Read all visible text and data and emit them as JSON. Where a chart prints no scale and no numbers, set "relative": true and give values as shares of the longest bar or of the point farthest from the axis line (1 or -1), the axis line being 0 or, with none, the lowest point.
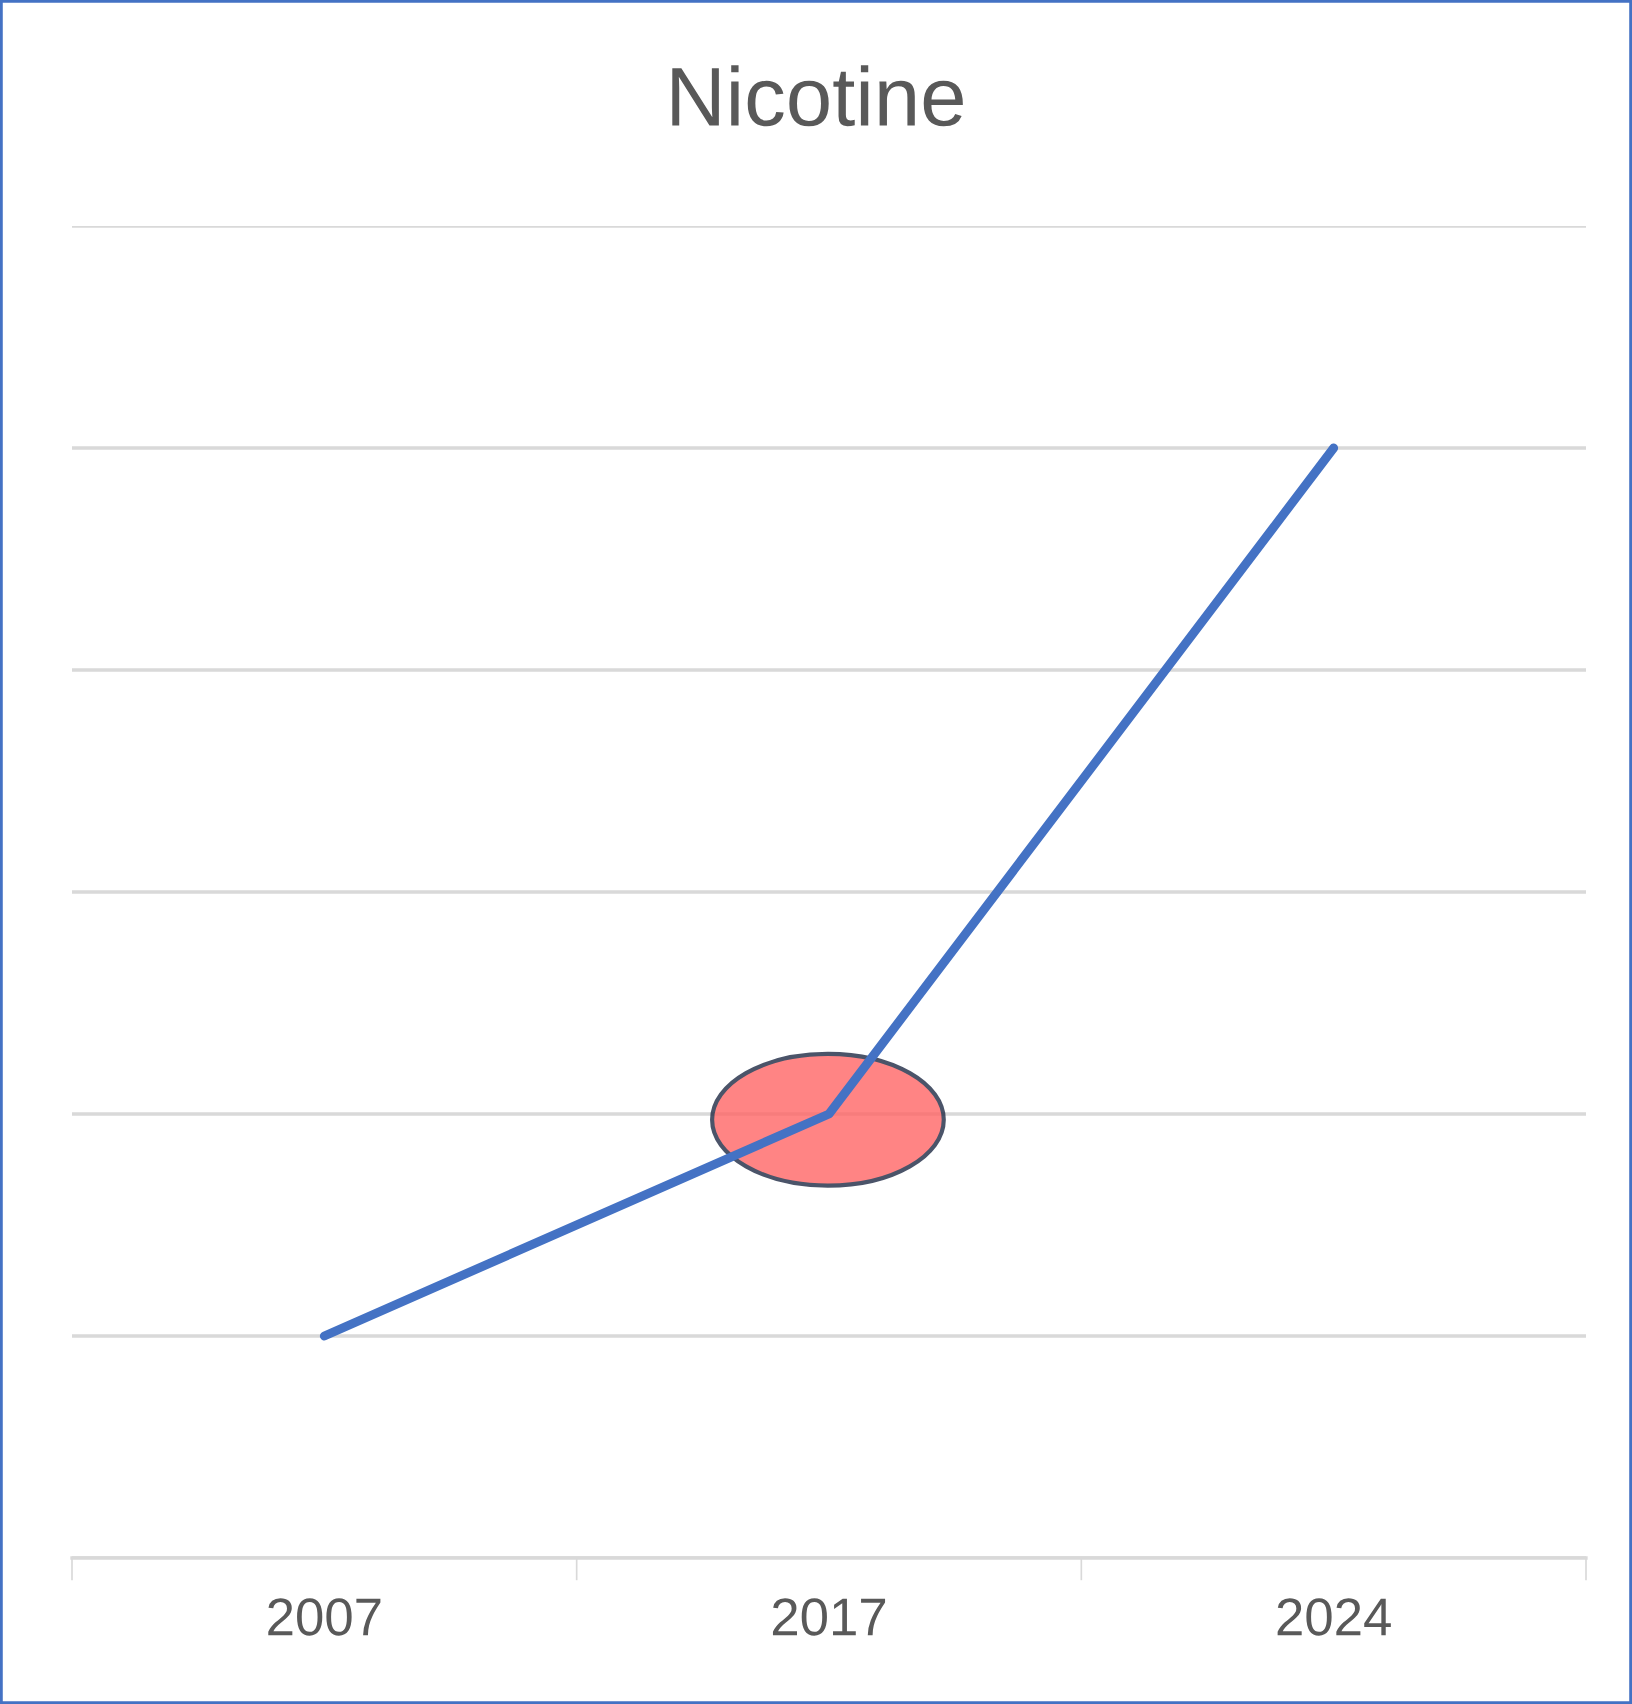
{
  "chart_data": {
    "type": "line",
    "title": "Nicotine",
    "relative": true,
    "categories": [
      "2007",
      "2017",
      "2024"
    ],
    "series": [
      {
        "color": "#4472c4",
        "values": [
          0.2,
          0.4,
          1.0
        ]
      }
    ],
    "grid": "y",
    "marker": "none",
    "line_style": "solid",
    "legend": false
  }
}
